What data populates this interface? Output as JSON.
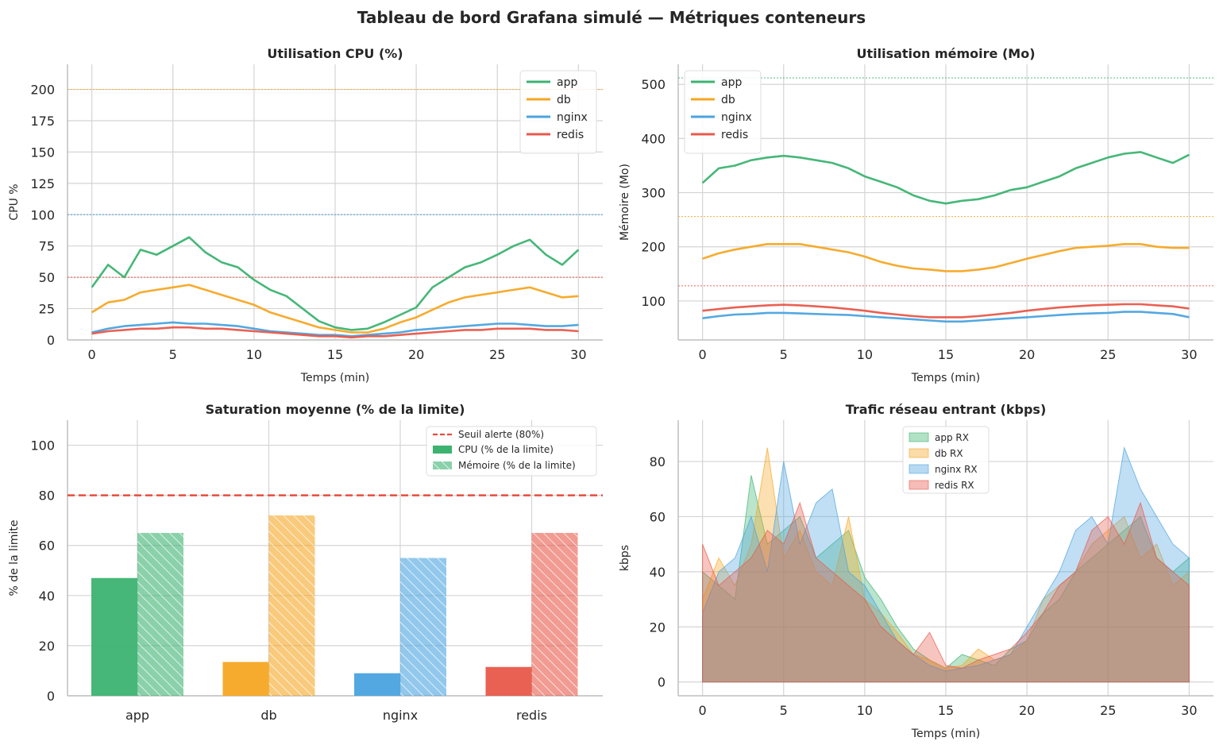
{
  "title": "Tableau de bord Grafana simulé — Métriques conteneurs",
  "colors": {
    "app": "#3cb371",
    "db": "#f5a623",
    "nginx": "#4aa3df",
    "redis": "#e8584a",
    "alert": "#e74c3c"
  },
  "chart_data": [
    {
      "type": "line",
      "title": "Utilisation CPU (%)",
      "xlabel": "Temps (min)",
      "ylabel": "CPU %",
      "xlim": [
        -1.5,
        31.5
      ],
      "ylim": [
        0,
        220
      ],
      "xticks": [
        0,
        5,
        10,
        15,
        20,
        25,
        30
      ],
      "yticks": [
        0,
        25,
        50,
        75,
        100,
        125,
        150,
        175,
        200
      ],
      "legend_position": "top-right",
      "grid": true,
      "reference_lines": [
        {
          "y": 200,
          "color": "#f5a623"
        },
        {
          "y": 100,
          "color": "#4aa3df"
        },
        {
          "y": 50,
          "color": "#e8584a"
        }
      ],
      "series": [
        {
          "name": "app",
          "color": "#3cb371",
          "x": [
            0,
            1,
            2,
            3,
            4,
            5,
            6,
            7,
            8,
            9,
            10,
            11,
            12,
            13,
            14,
            15,
            16,
            17,
            18,
            19,
            20,
            21,
            22,
            23,
            24,
            25,
            26,
            27,
            28,
            29,
            30
          ],
          "values": [
            42,
            60,
            50,
            72,
            68,
            75,
            82,
            70,
            62,
            58,
            48,
            40,
            35,
            25,
            15,
            10,
            8,
            9,
            14,
            20,
            26,
            42,
            50,
            58,
            62,
            68,
            75,
            80,
            68,
            60,
            72
          ]
        },
        {
          "name": "db",
          "color": "#f5a623",
          "x": [
            0,
            1,
            2,
            3,
            4,
            5,
            6,
            7,
            8,
            9,
            10,
            11,
            12,
            13,
            14,
            15,
            16,
            17,
            18,
            19,
            20,
            21,
            22,
            23,
            24,
            25,
            26,
            27,
            28,
            29,
            30
          ],
          "values": [
            22,
            30,
            32,
            38,
            40,
            42,
            44,
            40,
            36,
            32,
            28,
            22,
            18,
            14,
            10,
            8,
            6,
            6,
            9,
            14,
            18,
            24,
            30,
            34,
            36,
            38,
            40,
            42,
            38,
            34,
            35
          ]
        },
        {
          "name": "nginx",
          "color": "#4aa3df",
          "x": [
            0,
            1,
            2,
            3,
            4,
            5,
            6,
            7,
            8,
            9,
            10,
            11,
            12,
            13,
            14,
            15,
            16,
            17,
            18,
            19,
            20,
            21,
            22,
            23,
            24,
            25,
            26,
            27,
            28,
            29,
            30
          ],
          "values": [
            6,
            9,
            11,
            12,
            13,
            14,
            13,
            13,
            12,
            11,
            9,
            7,
            6,
            5,
            4,
            4,
            3,
            4,
            5,
            6,
            8,
            9,
            10,
            11,
            12,
            13,
            13,
            12,
            11,
            11,
            12
          ]
        },
        {
          "name": "redis",
          "color": "#e8584a",
          "x": [
            0,
            1,
            2,
            3,
            4,
            5,
            6,
            7,
            8,
            9,
            10,
            11,
            12,
            13,
            14,
            15,
            16,
            17,
            18,
            19,
            20,
            21,
            22,
            23,
            24,
            25,
            26,
            27,
            28,
            29,
            30
          ],
          "values": [
            5,
            7,
            8,
            9,
            9,
            10,
            10,
            9,
            9,
            8,
            7,
            6,
            5,
            4,
            3,
            3,
            2,
            3,
            3,
            4,
            5,
            6,
            7,
            8,
            8,
            9,
            9,
            9,
            8,
            8,
            7
          ]
        }
      ]
    },
    {
      "type": "line",
      "title": "Utilisation mémoire (Mo)",
      "xlabel": "Temps (min)",
      "ylabel": "Mémoire (Mo)",
      "xlim": [
        -1.5,
        31.5
      ],
      "ylim": [
        28,
        537
      ],
      "xticks": [
        0,
        5,
        10,
        15,
        20,
        25,
        30
      ],
      "yticks": [
        100,
        200,
        300,
        400,
        500
      ],
      "legend_position": "top-left",
      "grid": true,
      "reference_lines": [
        {
          "y": 512,
          "color": "#3cb371"
        },
        {
          "y": 256,
          "color": "#f5a623"
        },
        {
          "y": 128,
          "color": "#e8584a"
        }
      ],
      "series": [
        {
          "name": "app",
          "color": "#3cb371",
          "x": [
            0,
            1,
            2,
            3,
            4,
            5,
            6,
            7,
            8,
            9,
            10,
            11,
            12,
            13,
            14,
            15,
            16,
            17,
            18,
            19,
            20,
            21,
            22,
            23,
            24,
            25,
            26,
            27,
            28,
            29,
            30
          ],
          "values": [
            318,
            345,
            350,
            360,
            365,
            368,
            365,
            360,
            355,
            345,
            330,
            320,
            310,
            295,
            285,
            280,
            285,
            288,
            295,
            305,
            310,
            320,
            330,
            345,
            355,
            365,
            372,
            375,
            365,
            355,
            370
          ]
        },
        {
          "name": "db",
          "color": "#f5a623",
          "x": [
            0,
            1,
            2,
            3,
            4,
            5,
            6,
            7,
            8,
            9,
            10,
            11,
            12,
            13,
            14,
            15,
            16,
            17,
            18,
            19,
            20,
            21,
            22,
            23,
            24,
            25,
            26,
            27,
            28,
            29,
            30
          ],
          "values": [
            178,
            188,
            195,
            200,
            205,
            205,
            205,
            200,
            195,
            190,
            182,
            172,
            165,
            160,
            158,
            155,
            155,
            158,
            162,
            170,
            178,
            185,
            192,
            198,
            200,
            202,
            205,
            205,
            200,
            198,
            198
          ]
        },
        {
          "name": "nginx",
          "color": "#4aa3df",
          "x": [
            0,
            1,
            2,
            3,
            4,
            5,
            6,
            7,
            8,
            9,
            10,
            11,
            12,
            13,
            14,
            15,
            16,
            17,
            18,
            19,
            20,
            21,
            22,
            23,
            24,
            25,
            26,
            27,
            28,
            29,
            30
          ],
          "values": [
            68,
            72,
            75,
            76,
            78,
            78,
            77,
            76,
            75,
            74,
            72,
            70,
            68,
            66,
            64,
            62,
            62,
            64,
            66,
            68,
            70,
            72,
            74,
            76,
            77,
            78,
            80,
            80,
            78,
            76,
            70
          ]
        },
        {
          "name": "redis",
          "color": "#e8584a",
          "x": [
            0,
            1,
            2,
            3,
            4,
            5,
            6,
            7,
            8,
            9,
            10,
            11,
            12,
            13,
            14,
            15,
            16,
            17,
            18,
            19,
            20,
            21,
            22,
            23,
            24,
            25,
            26,
            27,
            28,
            29,
            30
          ],
          "values": [
            82,
            85,
            88,
            90,
            92,
            93,
            92,
            90,
            88,
            85,
            82,
            78,
            75,
            72,
            70,
            70,
            70,
            72,
            75,
            78,
            82,
            85,
            88,
            90,
            92,
            93,
            94,
            94,
            92,
            90,
            86
          ]
        }
      ]
    },
    {
      "type": "bar",
      "title": "Saturation moyenne (% de la limite)",
      "ylabel": "% de la limite",
      "categories": [
        "app",
        "db",
        "nginx",
        "redis"
      ],
      "ylim": [
        0,
        110
      ],
      "yticks": [
        0,
        20,
        40,
        60,
        80,
        100
      ],
      "legend_position": "top-right",
      "grid": true,
      "threshold": {
        "y": 80,
        "label": "Seuil alerte (80%)",
        "color": "#e74c3c"
      },
      "series": [
        {
          "name": "CPU (% de la limite)",
          "values": [
            47,
            13.5,
            9,
            11.5
          ],
          "colors": [
            "#3cb371",
            "#f5a623",
            "#4aa3df",
            "#e8584a"
          ],
          "hatched": false
        },
        {
          "name": "Mémoire (% de la limite)",
          "values": [
            65,
            72,
            55,
            65
          ],
          "colors": [
            "#3cb371",
            "#f5a623",
            "#4aa3df",
            "#e8584a"
          ],
          "hatched": true
        }
      ]
    },
    {
      "type": "area",
      "title": "Trafic réseau entrant (kbps)",
      "xlabel": "Temps (min)",
      "ylabel": "kbps",
      "xlim": [
        -1.5,
        31.5
      ],
      "ylim": [
        -5,
        95
      ],
      "xticks": [
        0,
        5,
        10,
        15,
        20,
        25,
        30
      ],
      "yticks": [
        0,
        20,
        40,
        60,
        80
      ],
      "legend_position": "top-center",
      "grid": true,
      "series": [
        {
          "name": "app RX",
          "color": "#3cb371",
          "x": [
            0,
            1,
            2,
            3,
            4,
            5,
            6,
            7,
            8,
            9,
            10,
            11,
            12,
            13,
            14,
            15,
            16,
            17,
            18,
            19,
            20,
            21,
            22,
            23,
            24,
            25,
            26,
            27,
            28,
            29,
            30
          ],
          "values": [
            40,
            35,
            30,
            75,
            50,
            55,
            60,
            45,
            50,
            55,
            38,
            30,
            20,
            12,
            8,
            5,
            10,
            8,
            6,
            12,
            15,
            25,
            30,
            40,
            45,
            50,
            55,
            60,
            45,
            40,
            45
          ]
        },
        {
          "name": "db RX",
          "color": "#f5a623",
          "x": [
            0,
            1,
            2,
            3,
            4,
            5,
            6,
            7,
            8,
            9,
            10,
            11,
            12,
            13,
            14,
            15,
            16,
            17,
            18,
            19,
            20,
            21,
            22,
            23,
            24,
            25,
            26,
            27,
            28,
            29,
            30
          ],
          "values": [
            30,
            45,
            35,
            50,
            85,
            45,
            55,
            40,
            35,
            60,
            30,
            25,
            18,
            10,
            8,
            5,
            6,
            12,
            8,
            10,
            15,
            30,
            35,
            40,
            50,
            55,
            60,
            45,
            50,
            35,
            40
          ]
        },
        {
          "name": "nginx RX",
          "color": "#4aa3df",
          "x": [
            0,
            1,
            2,
            3,
            4,
            5,
            6,
            7,
            8,
            9,
            10,
            11,
            12,
            13,
            14,
            15,
            16,
            17,
            18,
            19,
            20,
            21,
            22,
            23,
            24,
            25,
            26,
            27,
            28,
            29,
            30
          ],
          "values": [
            25,
            40,
            45,
            60,
            40,
            80,
            50,
            65,
            70,
            40,
            35,
            25,
            15,
            10,
            6,
            4,
            5,
            6,
            8,
            10,
            20,
            30,
            40,
            55,
            60,
            50,
            85,
            70,
            60,
            50,
            45
          ]
        },
        {
          "name": "redis RX",
          "color": "#e8584a",
          "x": [
            0,
            1,
            2,
            3,
            4,
            5,
            6,
            7,
            8,
            9,
            10,
            11,
            12,
            13,
            14,
            15,
            16,
            17,
            18,
            19,
            20,
            21,
            22,
            23,
            24,
            25,
            26,
            27,
            28,
            29,
            30
          ],
          "values": [
            50,
            35,
            40,
            45,
            55,
            50,
            65,
            45,
            40,
            35,
            30,
            20,
            15,
            10,
            18,
            6,
            5,
            8,
            10,
            12,
            18,
            25,
            35,
            40,
            55,
            60,
            50,
            65,
            45,
            40,
            35
          ]
        }
      ]
    }
  ]
}
